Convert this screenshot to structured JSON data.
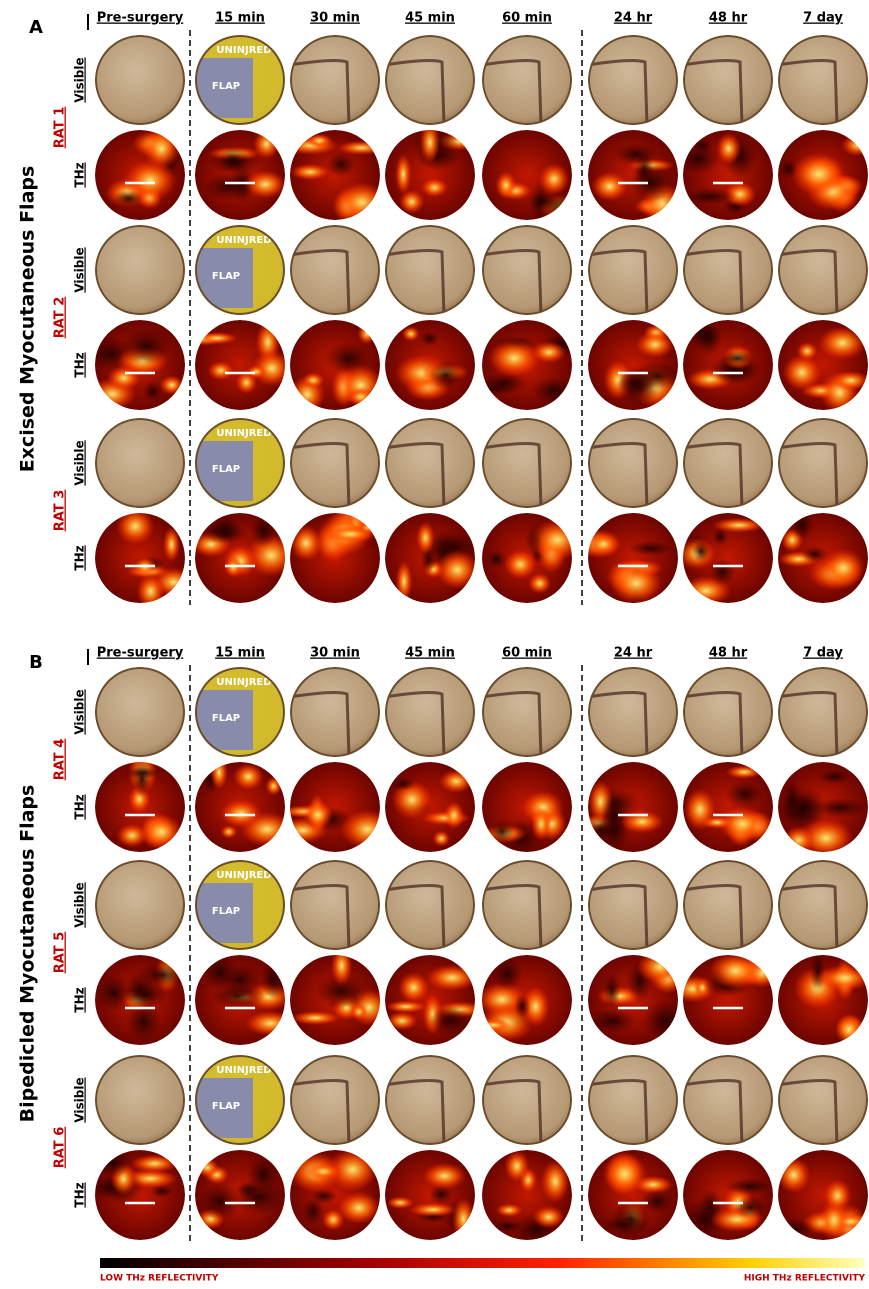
{
  "panels": [
    {
      "label": "A",
      "title": "Excised Myocutaneous Flaps",
      "columns": [
        "Pre-surgery",
        "15 min",
        "30 min",
        "45 min",
        "60 min",
        "24 hr",
        "48 hr",
        "7 day"
      ],
      "rats": [
        "RAT 1",
        "RAT 2",
        "RAT 3"
      ]
    },
    {
      "label": "B",
      "title": "Bipedicled Myocutaneous Flaps",
      "columns": [
        "Pre-surgery",
        "15 min",
        "30 min",
        "45 min",
        "60 min",
        "24 hr",
        "48 hr",
        "7 day"
      ],
      "rats": [
        "RAT 4",
        "RAT 5",
        "RAT 6"
      ]
    }
  ],
  "row_labels": [
    "Visible",
    "THz"
  ],
  "overlay_labels": [
    "UNINJRED",
    "FLAP"
  ],
  "colorbar": {
    "low": "LOW THz REFLECTIVITY",
    "high": "HIGH THz REFLECTIVITY"
  }
}
